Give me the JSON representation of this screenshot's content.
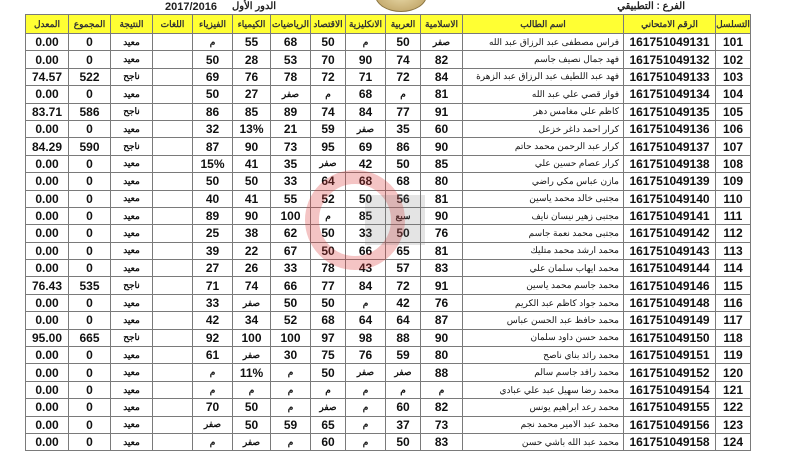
{
  "header": {
    "branch": "الفرع : التطبيقي",
    "session": "الدور الأول",
    "year": "2017/2016",
    "watermark_logo_text": "الفرات"
  },
  "colors": {
    "header_bg": "#ffff33",
    "border": "#7a7a7a",
    "watermark": "#dc3c3c"
  },
  "columns": [
    "التسلسل",
    "الرقم الامتحاني",
    "اسم الطالب",
    "الاسلامية",
    "العربية",
    "الانكليزية",
    "الاقتصاد",
    "الرياضيات",
    "الكيمياء",
    "الفيزياء",
    "اللغات",
    "النتيجة",
    "المجموع",
    "المعدل"
  ],
  "rows": [
    [
      "101",
      "161751049131",
      "فراس مصطفى عبد الرزاق عبد الله",
      "صفر",
      "50",
      "م",
      "50",
      "68",
      "55",
      "م",
      "",
      "معيد",
      "0",
      "0.00"
    ],
    [
      "102",
      "161751049132",
      "فهد جمال نصيف جاسم",
      "82",
      "74",
      "90",
      "70",
      "53",
      "28",
      "50",
      "",
      "معيد",
      "0",
      "0.00"
    ],
    [
      "103",
      "161751049133",
      "فهد عبد اللطيف عبد الرزاق عبد الزهرة",
      "84",
      "72",
      "71",
      "72",
      "78",
      "76",
      "69",
      "",
      "ناجح",
      "522",
      "74.57"
    ],
    [
      "104",
      "161751049134",
      "فواز قصي علي عبد الله",
      "81",
      "م",
      "68",
      "م",
      "صفر",
      "27",
      "50",
      "",
      "معيد",
      "0",
      "0.00"
    ],
    [
      "105",
      "161751049135",
      "كاظم علي مغامس دهر",
      "91",
      "77",
      "84",
      "74",
      "89",
      "85",
      "86",
      "",
      "ناجح",
      "586",
      "83.71"
    ],
    [
      "106",
      "161751049136",
      "كرار احمد داغر خزعل",
      "60",
      "35",
      "صفر",
      "59",
      "21",
      "13%",
      "32",
      "",
      "معيد",
      "0",
      "0.00"
    ],
    [
      "107",
      "161751049137",
      "كرار عبد الرحمن محمد حاتم",
      "90",
      "86",
      "69",
      "95",
      "73",
      "90",
      "87",
      "",
      "ناجح",
      "590",
      "84.29"
    ],
    [
      "108",
      "161751049138",
      "كرار عصام حسين علي",
      "85",
      "50",
      "42",
      "صفر",
      "35",
      "41",
      "15%",
      "",
      "معيد",
      "0",
      "0.00"
    ],
    [
      "109",
      "161751049139",
      "مازن عباس مكي راضي",
      "80",
      "68",
      "68",
      "64",
      "33",
      "50",
      "50",
      "",
      "معيد",
      "0",
      "0.00"
    ],
    [
      "110",
      "161751049140",
      "مجتبى خالد محمد ياسين",
      "81",
      "56",
      "50",
      "52",
      "55",
      "41",
      "40",
      "",
      "معيد",
      "0",
      "0.00"
    ],
    [
      "111",
      "161751049141",
      "مجتبى زهير نيسان نايف",
      "90",
      "سبع",
      "85",
      "م",
      "100",
      "90",
      "89",
      "",
      "معيد",
      "0",
      "0.00"
    ],
    [
      "112",
      "161751049142",
      "مجتبى محمد نعمة جاسم",
      "76",
      "50",
      "33",
      "50",
      "62",
      "38",
      "25",
      "",
      "معيد",
      "0",
      "0.00"
    ],
    [
      "113",
      "161751049143",
      "محمد ارشد محمد متليك",
      "81",
      "65",
      "66",
      "50",
      "67",
      "22",
      "39",
      "",
      "معيد",
      "0",
      "0.00"
    ],
    [
      "114",
      "161751049144",
      "محمد ايهاب سلمان علي",
      "83",
      "57",
      "43",
      "78",
      "33",
      "26",
      "27",
      "",
      "معيد",
      "0",
      "0.00"
    ],
    [
      "115",
      "161751049146",
      "محمد جاسم محمد ياسين",
      "91",
      "72",
      "84",
      "77",
      "66",
      "74",
      "71",
      "",
      "ناجح",
      "535",
      "76.43"
    ],
    [
      "116",
      "161751049148",
      "محمد جواد كاظم عبد الكريم",
      "76",
      "42",
      "م",
      "50",
      "50",
      "صفر",
      "33",
      "",
      "معيد",
      "0",
      "0.00"
    ],
    [
      "117",
      "161751049149",
      "محمد حافظ عبد الحسن عباس",
      "87",
      "64",
      "64",
      "68",
      "52",
      "34",
      "42",
      "",
      "معيد",
      "0",
      "0.00"
    ],
    [
      "118",
      "161751049150",
      "محمد حسن داود سلمان",
      "90",
      "88",
      "98",
      "97",
      "100",
      "100",
      "92",
      "",
      "ناجح",
      "665",
      "95.00"
    ],
    [
      "119",
      "161751049151",
      "محمد رائد بناي ناصح",
      "80",
      "59",
      "76",
      "75",
      "30",
      "صفر",
      "61",
      "",
      "معيد",
      "0",
      "0.00"
    ],
    [
      "120",
      "161751049152",
      "محمد رافد جاسم سالم",
      "88",
      "صفر",
      "صفر",
      "50",
      "م",
      "11%",
      "م",
      "",
      "معيد",
      "0",
      "0.00"
    ],
    [
      "121",
      "161751049154",
      "محمد رضا سهيل عبد علي عبادي",
      "م",
      "م",
      "م",
      "م",
      "م",
      "م",
      "م",
      "",
      "معيد",
      "0",
      "0.00"
    ],
    [
      "122",
      "161751049155",
      "محمد رعد ابراهيم يونس",
      "82",
      "60",
      "م",
      "صفر",
      "م",
      "50",
      "70",
      "",
      "معيد",
      "0",
      "0.00"
    ],
    [
      "123",
      "161751049156",
      "محمد عبد الامير محمد نجم",
      "73",
      "37",
      "م",
      "65",
      "59",
      "50",
      "صفر",
      "",
      "معيد",
      "0",
      "0.00"
    ],
    [
      "124",
      "161751049158",
      "محمد عبد الله باشي حسن",
      "83",
      "50",
      "م",
      "60",
      "م",
      "صفر",
      "م",
      "",
      "معيد",
      "0",
      "0.00"
    ]
  ]
}
